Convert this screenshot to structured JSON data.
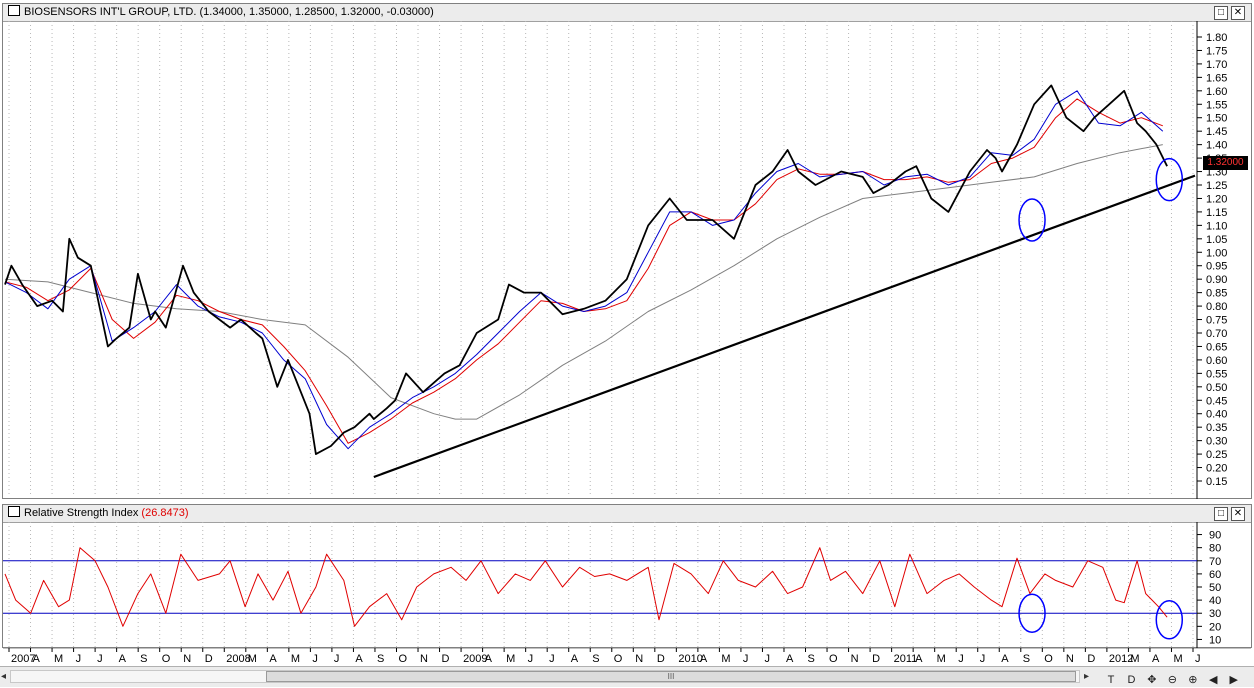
{
  "price_panel": {
    "title": "BIOSENSORS INT'L GROUP, LTD.",
    "ohlc": "(1.34000, 1.35000, 1.28500, 1.32000, -0.03000)",
    "last_price_tag": "1.32000"
  },
  "rsi_panel": {
    "title": "Relative Strength Index",
    "value": "(26.8473)"
  },
  "buttons": {
    "restore": "□",
    "close": "✕"
  },
  "toolbar": {
    "labels": [
      "T",
      "D"
    ],
    "icons": [
      "crosshair-icon",
      "zoom-out-icon",
      "zoom-in-icon",
      "scroll-left-icon",
      "scroll-right-icon"
    ],
    "scroll_thumb": "III"
  },
  "chart_data": [
    {
      "type": "line",
      "y_axis_ticks": [
        "1.80",
        "1.75",
        "1.70",
        "1.65",
        "1.60",
        "1.55",
        "1.50",
        "1.45",
        "1.40",
        "1.35",
        "1.30",
        "1.25",
        "1.20",
        "1.15",
        "1.10",
        "1.05",
        "1.00",
        "0.95",
        "0.90",
        "0.85",
        "0.80",
        "0.75",
        "0.70",
        "0.65",
        "0.60",
        "0.55",
        "0.50",
        "0.45",
        "0.40",
        "0.35",
        "0.30",
        "0.25",
        "0.20",
        "0.15"
      ],
      "ylim": [
        0.15,
        1.8
      ],
      "x_ticks": [
        "2007",
        "A",
        "M",
        "J",
        "J",
        "A",
        "S",
        "O",
        "N",
        "D",
        "2008",
        "M",
        "A",
        "M",
        "J",
        "J",
        "A",
        "S",
        "O",
        "N",
        "D",
        "2009",
        "A",
        "M",
        "J",
        "J",
        "A",
        "S",
        "O",
        "N",
        "D",
        "2010",
        "A",
        "M",
        "J",
        "J",
        "A",
        "S",
        "O",
        "N",
        "D",
        "2011",
        "A",
        "M",
        "J",
        "J",
        "A",
        "S",
        "O",
        "N",
        "D",
        "2012",
        "M",
        "A",
        "M",
        "J"
      ],
      "xlim": [
        2007.0,
        2012.55
      ],
      "series": [
        {
          "style": "black-bars",
          "x": [
            2007.0,
            2007.03,
            2007.08,
            2007.15,
            2007.22,
            2007.27,
            2007.3,
            2007.34,
            2007.4,
            2007.48,
            2007.52,
            2007.58,
            2007.62,
            2007.68,
            2007.7,
            2007.75,
            2007.83,
            2007.88,
            2007.95,
            2008.05,
            2008.1,
            2008.17,
            2008.2,
            2008.27,
            2008.32,
            2008.42,
            2008.45,
            2008.52,
            2008.58,
            2008.63,
            2008.7,
            2008.72,
            2008.78,
            2008.82,
            2008.87,
            2008.95,
            2009.05,
            2009.12,
            2009.2,
            2009.3,
            2009.35,
            2009.42,
            2009.5,
            2009.6,
            2009.7,
            2009.8,
            2009.9,
            2010.0,
            2010.1,
            2010.18,
            2010.3,
            2010.4,
            2010.5,
            2010.58,
            2010.65,
            2010.7,
            2010.78,
            2010.9,
            2011.0,
            2011.05,
            2011.12,
            2011.2,
            2011.25,
            2011.32,
            2011.4,
            2011.5,
            2011.58,
            2011.62,
            2011.65,
            2011.72,
            2011.8,
            2011.88,
            2011.95,
            2012.03,
            2012.08,
            2012.15,
            2012.22,
            2012.28,
            2012.32,
            2012.37,
            2012.42
          ],
          "y": [
            0.88,
            0.95,
            0.88,
            0.8,
            0.82,
            0.78,
            1.05,
            0.98,
            0.95,
            0.65,
            0.68,
            0.72,
            0.92,
            0.75,
            0.78,
            0.72,
            0.95,
            0.85,
            0.78,
            0.72,
            0.75,
            0.7,
            0.68,
            0.5,
            0.6,
            0.4,
            0.25,
            0.28,
            0.33,
            0.35,
            0.4,
            0.38,
            0.42,
            0.45,
            0.55,
            0.48,
            0.55,
            0.58,
            0.7,
            0.75,
            0.88,
            0.85,
            0.85,
            0.77,
            0.79,
            0.82,
            0.9,
            1.1,
            1.2,
            1.12,
            1.12,
            1.05,
            1.25,
            1.3,
            1.38,
            1.3,
            1.25,
            1.3,
            1.28,
            1.22,
            1.25,
            1.3,
            1.32,
            1.2,
            1.15,
            1.3,
            1.38,
            1.35,
            1.3,
            1.4,
            1.55,
            1.62,
            1.5,
            1.45,
            1.5,
            1.55,
            1.6,
            1.48,
            1.45,
            1.4,
            1.32
          ]
        },
        {
          "style": "blue-ma",
          "x": [
            2007.0,
            2007.1,
            2007.2,
            2007.3,
            2007.4,
            2007.5,
            2007.6,
            2007.7,
            2007.8,
            2007.9,
            2008.0,
            2008.1,
            2008.2,
            2008.3,
            2008.4,
            2008.5,
            2008.6,
            2008.7,
            2008.8,
            2008.9,
            2009.0,
            2009.1,
            2009.2,
            2009.3,
            2009.4,
            2009.5,
            2009.6,
            2009.7,
            2009.8,
            2009.9,
            2010.0,
            2010.1,
            2010.2,
            2010.3,
            2010.4,
            2010.5,
            2010.6,
            2010.7,
            2010.8,
            2010.9,
            2011.0,
            2011.1,
            2011.2,
            2011.3,
            2011.4,
            2011.5,
            2011.6,
            2011.7,
            2011.8,
            2011.9,
            2012.0,
            2012.1,
            2012.2,
            2012.3,
            2012.4
          ],
          "y": [
            0.89,
            0.85,
            0.79,
            0.9,
            0.95,
            0.67,
            0.72,
            0.78,
            0.88,
            0.8,
            0.76,
            0.74,
            0.7,
            0.6,
            0.53,
            0.36,
            0.27,
            0.35,
            0.4,
            0.46,
            0.5,
            0.55,
            0.62,
            0.7,
            0.78,
            0.85,
            0.8,
            0.78,
            0.8,
            0.85,
            1.0,
            1.15,
            1.15,
            1.1,
            1.12,
            1.22,
            1.3,
            1.33,
            1.28,
            1.29,
            1.3,
            1.25,
            1.28,
            1.29,
            1.25,
            1.28,
            1.37,
            1.36,
            1.42,
            1.55,
            1.6,
            1.48,
            1.47,
            1.52,
            1.45
          ]
        },
        {
          "style": "red-ma",
          "x": [
            2007.0,
            2007.1,
            2007.2,
            2007.3,
            2007.4,
            2007.5,
            2007.6,
            2007.7,
            2007.8,
            2007.9,
            2008.0,
            2008.1,
            2008.2,
            2008.3,
            2008.4,
            2008.5,
            2008.6,
            2008.7,
            2008.8,
            2008.9,
            2009.0,
            2009.1,
            2009.2,
            2009.3,
            2009.4,
            2009.5,
            2009.6,
            2009.7,
            2009.8,
            2009.9,
            2010.0,
            2010.1,
            2010.2,
            2010.3,
            2010.4,
            2010.5,
            2010.6,
            2010.7,
            2010.8,
            2010.9,
            2011.0,
            2011.1,
            2011.2,
            2011.3,
            2011.4,
            2011.5,
            2011.6,
            2011.7,
            2011.8,
            2011.9,
            2012.0,
            2012.1,
            2012.2,
            2012.3,
            2012.4
          ],
          "y": [
            0.89,
            0.87,
            0.82,
            0.86,
            0.94,
            0.75,
            0.68,
            0.74,
            0.84,
            0.82,
            0.78,
            0.75,
            0.73,
            0.65,
            0.56,
            0.43,
            0.29,
            0.33,
            0.38,
            0.44,
            0.48,
            0.53,
            0.6,
            0.66,
            0.74,
            0.82,
            0.81,
            0.78,
            0.79,
            0.82,
            0.94,
            1.1,
            1.15,
            1.12,
            1.12,
            1.18,
            1.27,
            1.31,
            1.29,
            1.29,
            1.3,
            1.27,
            1.27,
            1.28,
            1.26,
            1.27,
            1.33,
            1.35,
            1.39,
            1.5,
            1.57,
            1.52,
            1.48,
            1.5,
            1.47
          ]
        },
        {
          "style": "gray-ma",
          "x": [
            2007.0,
            2007.2,
            2007.4,
            2007.6,
            2007.8,
            2008.0,
            2008.2,
            2008.4,
            2008.6,
            2008.8,
            2009.0,
            2009.1,
            2009.2,
            2009.4,
            2009.6,
            2009.8,
            2010.0,
            2010.2,
            2010.4,
            2010.6,
            2010.8,
            2011.0,
            2011.2,
            2011.4,
            2011.6,
            2011.8,
            2012.0,
            2012.2,
            2012.4
          ],
          "y": [
            0.9,
            0.89,
            0.85,
            0.81,
            0.79,
            0.78,
            0.75,
            0.73,
            0.61,
            0.46,
            0.4,
            0.38,
            0.38,
            0.47,
            0.58,
            0.67,
            0.78,
            0.86,
            0.95,
            1.05,
            1.13,
            1.2,
            1.22,
            1.24,
            1.26,
            1.28,
            1.33,
            1.37,
            1.4
          ]
        },
        {
          "style": "trendline",
          "x": [
            2008.72,
            2012.55
          ],
          "y": [
            0.165,
            1.285
          ]
        }
      ],
      "annotations": [
        {
          "shape": "ellipse",
          "x": 2011.79,
          "y": 1.12
        },
        {
          "shape": "ellipse",
          "x": 2012.43,
          "y": 1.27
        }
      ]
    },
    {
      "type": "line",
      "y_axis_ticks": [
        "90",
        "80",
        "70",
        "60",
        "50",
        "40",
        "30",
        "20",
        "10"
      ],
      "ylim": [
        5,
        95
      ],
      "reference_lines": [
        70,
        30
      ],
      "series": [
        {
          "style": "red-rsi",
          "x": [
            2007.0,
            2007.05,
            2007.12,
            2007.18,
            2007.25,
            2007.3,
            2007.35,
            2007.42,
            2007.48,
            2007.55,
            2007.62,
            2007.68,
            2007.75,
            2007.82,
            2007.9,
            2008.0,
            2008.05,
            2008.12,
            2008.18,
            2008.25,
            2008.32,
            2008.38,
            2008.45,
            2008.5,
            2008.58,
            2008.63,
            2008.7,
            2008.78,
            2008.85,
            2008.92,
            2009.0,
            2009.08,
            2009.15,
            2009.22,
            2009.3,
            2009.38,
            2009.45,
            2009.52,
            2009.6,
            2009.68,
            2009.75,
            2009.82,
            2009.9,
            2010.0,
            2010.05,
            2010.12,
            2010.2,
            2010.28,
            2010.35,
            2010.42,
            2010.5,
            2010.58,
            2010.65,
            2010.72,
            2010.8,
            2010.85,
            2010.92,
            2011.0,
            2011.08,
            2011.15,
            2011.22,
            2011.3,
            2011.38,
            2011.45,
            2011.52,
            2011.6,
            2011.65,
            2011.72,
            2011.78,
            2011.85,
            2011.9,
            2011.98,
            2012.05,
            2012.12,
            2012.18,
            2012.22,
            2012.28,
            2012.32,
            2012.35,
            2012.38,
            2012.42
          ],
          "y": [
            60,
            40,
            30,
            55,
            35,
            40,
            80,
            70,
            50,
            20,
            45,
            60,
            30,
            75,
            55,
            60,
            70,
            35,
            60,
            40,
            62,
            30,
            50,
            75,
            55,
            20,
            35,
            45,
            25,
            50,
            60,
            65,
            55,
            70,
            45,
            60,
            55,
            70,
            50,
            65,
            58,
            60,
            55,
            65,
            25,
            68,
            60,
            45,
            70,
            55,
            50,
            62,
            45,
            50,
            80,
            55,
            62,
            45,
            70,
            35,
            75,
            45,
            55,
            60,
            50,
            40,
            35,
            72,
            45,
            60,
            55,
            50,
            70,
            65,
            40,
            38,
            70,
            45,
            40,
            35,
            27
          ]
        }
      ],
      "annotations": [
        {
          "shape": "ellipse",
          "x": 2011.79,
          "y": 30
        },
        {
          "shape": "ellipse",
          "x": 2012.43,
          "y": 25
        }
      ]
    }
  ]
}
